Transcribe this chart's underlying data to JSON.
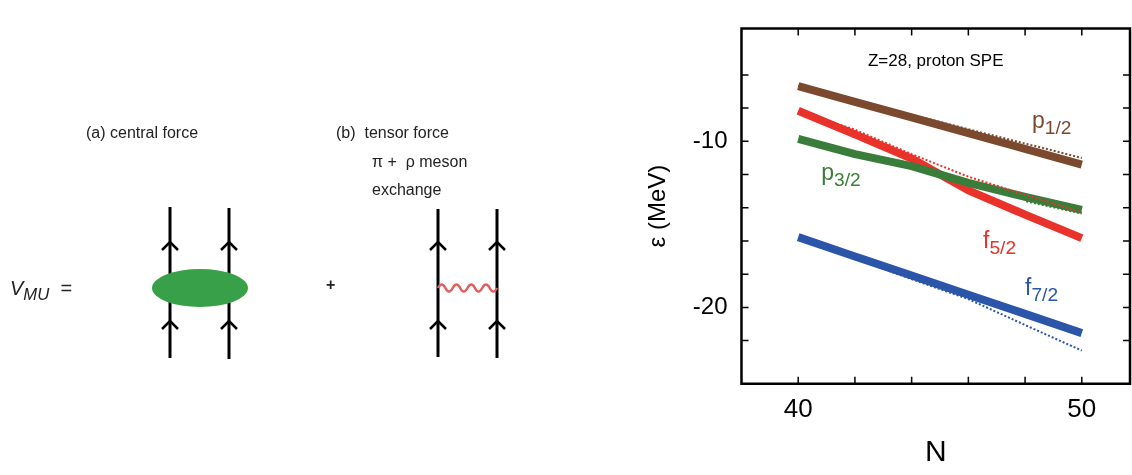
{
  "chart_data": [
    {
      "type": "other",
      "annotations": [
        "(a) central force",
        "(b)  tensor force",
        "π +  ρ meson",
        "exchange",
        "V$_{MU}$  =",
        "+"
      ]
    },
    {
      "type": "line",
      "xlabel": "N",
      "ylabel": "ε (MeV)",
      "annotations": [
        "Z=28, proton SPE"
      ],
      "x": [
        40,
        42,
        44,
        46,
        48,
        50
      ],
      "xlim": [
        38,
        51.7
      ],
      "ylim": [
        -24.6,
        -3.2
      ],
      "xticks": [
        40,
        {
          "value": 42,
          "label": null
        },
        {
          "value": 44,
          "label": null
        },
        {
          "value": 46,
          "label": null
        },
        {
          "value": 48,
          "label": null
        },
        50
      ],
      "yticks": [
        {
          "value": -6,
          "label": null
        },
        {
          "value": -8,
          "label": null
        },
        -10,
        {
          "value": -12,
          "label": null
        },
        {
          "value": -14,
          "label": null
        },
        {
          "value": -16,
          "label": null
        },
        {
          "value": -18,
          "label": null
        },
        -20,
        {
          "value": -22,
          "label": null
        }
      ],
      "grid": false,
      "legend": false,
      "marker": "none",
      "series": [
        {
          "name": "p$_{1/2}$",
          "color": "#7b4a2e",
          "line_style": "solid",
          "values": [
            -6.67,
            -7.62,
            -8.56,
            -9.51,
            -10.45,
            -11.4
          ]
        },
        {
          "color": "#7b4a2e",
          "line_style": "dotted",
          "values": [
            -6.67,
            -7.54,
            -8.4,
            -9.27,
            -10.13,
            -11.0
          ]
        },
        {
          "name": "p$_{3/2}$",
          "color": "#3a7d3a",
          "line_style": "solid",
          "values": [
            -9.85,
            -10.77,
            -11.49,
            -12.5,
            -13.35,
            -14.13
          ]
        },
        {
          "color": "#3a7d3a",
          "line_style": "dotted",
          "values": [
            null,
            null,
            null,
            null,
            -13.6,
            -14.35
          ]
        },
        {
          "name": "f$_{5/2}$",
          "color": "#e8322a",
          "line_style": "solid",
          "values": [
            -8.16,
            -9.58,
            -11.04,
            -12.95,
            -14.41,
            -15.83
          ]
        },
        {
          "color": "#e8322a",
          "line_style": "dotted",
          "values": [
            -8.16,
            -9.3,
            -10.77,
            -12.13,
            -13.22,
            -14.28
          ]
        },
        {
          "name": "f$_{7/2}$",
          "color": "#2a55a8",
          "line_style": "solid",
          "values": [
            -15.77,
            -16.93,
            -18.08,
            -19.24,
            -20.39,
            -21.55
          ]
        },
        {
          "color": "#2a55a8",
          "line_style": "dotted",
          "values": [
            -15.77,
            -17.05,
            -18.3,
            -19.5,
            -21.06,
            -22.6
          ]
        }
      ]
    }
  ]
}
